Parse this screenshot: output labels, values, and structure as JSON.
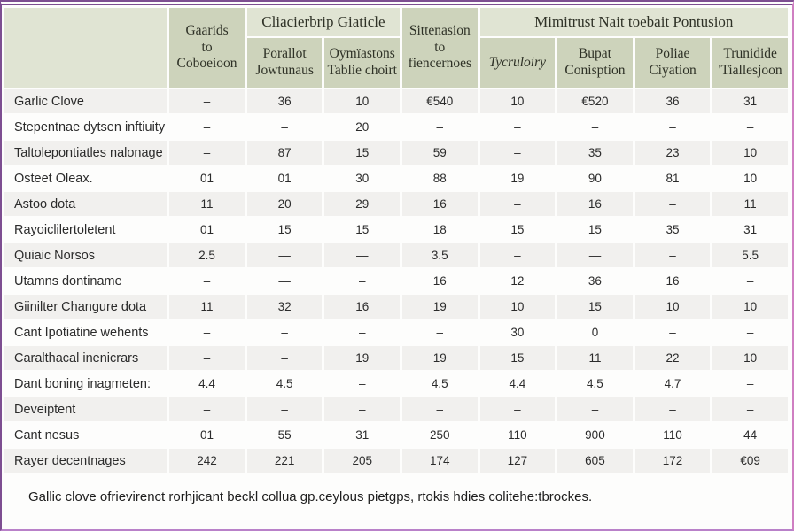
{
  "table": {
    "group_headers": {
      "first": "Cliacierbrip Giaticle",
      "second": "Mimitrust Nait toebait Pontusion"
    },
    "column_headers": {
      "col1": "Gaarids\nto\nCoboeioon",
      "col2": "Porallot\nJowtunaus",
      "col3": "Oymïastons\nTablie choirt",
      "col4": "Sittenasion\nto\nfiencernoes",
      "col5": "Tycruloiry",
      "col6": "Bupat\nConisption",
      "col7": "Poliae\nCiyation",
      "col8": "Trunidide\n'Tiallesjoon"
    },
    "rows": [
      {
        "label": "Garlic Clove",
        "values": [
          "–",
          "36",
          "10",
          "€540",
          "10",
          "€520",
          "36",
          "31"
        ]
      },
      {
        "label": "Stepentnae dytsen inftiuity",
        "values": [
          "–",
          "–",
          "20",
          "–",
          "–",
          "–",
          "–",
          "–"
        ]
      },
      {
        "label": "Taltolepontiatles nalonage",
        "values": [
          "–",
          "87",
          "15",
          "59",
          "–",
          "35",
          "23",
          "10"
        ]
      },
      {
        "label": "Osteet Oleax.",
        "values": [
          "01",
          "01",
          "30",
          "88",
          "19",
          "90",
          "81",
          "10"
        ]
      },
      {
        "label": "Astoo dota",
        "values": [
          "11",
          "20",
          "29",
          "16",
          "–",
          "16",
          "–",
          "11"
        ]
      },
      {
        "label": "Rayoiclilertoletent",
        "values": [
          "01",
          "15",
          "15",
          "18",
          "15",
          "15",
          "35",
          "31"
        ]
      },
      {
        "label": "Quiaic Norsos",
        "values": [
          "2.5",
          "—",
          "—",
          "3.5",
          "–",
          "—",
          "–",
          "5.5"
        ]
      },
      {
        "label": "Utamns dontiname",
        "values": [
          "–",
          "—",
          "–",
          "16",
          "12",
          "36",
          "16",
          "–"
        ]
      },
      {
        "label": "Giinilter Changure dota",
        "values": [
          "11",
          "32",
          "16",
          "19",
          "10",
          "15",
          "10",
          "10"
        ]
      },
      {
        "label": "Cant Ipotiatine wehents",
        "values": [
          "–",
          "–",
          "–",
          "–",
          "30",
          "0",
          "–",
          "–"
        ]
      },
      {
        "label": "Caralthacal inenicrars",
        "values": [
          "–",
          "–",
          "19",
          "19",
          "15",
          "11",
          "22",
          "10"
        ]
      },
      {
        "label": "Dant boning inagmeten:",
        "values": [
          "4.4",
          "4.5",
          "–",
          "4.5",
          "4.4",
          "4.5",
          "4.7",
          "–"
        ]
      },
      {
        "label": "Deveiptent",
        "values": [
          "–",
          "–",
          "–",
          "–",
          "–",
          "–",
          "–",
          "–"
        ]
      },
      {
        "label": "Cant nesus",
        "values": [
          "01",
          "55",
          "31",
          "250",
          "110",
          "900",
          "110",
          "44"
        ]
      },
      {
        "label": "Rayer decentnages",
        "values": [
          "242",
          "221",
          "205",
          "174",
          "127",
          "605",
          "172",
          "€09"
        ]
      }
    ]
  },
  "footer": {
    "note": "Gallic clove ofrievirenct rorhjicant beckl collua gp.ceylous pietgps, rtokis hdies colitehe:tbrockes."
  },
  "colors": {
    "header_light": "#e0e4d3",
    "header_dark": "#cdd3bb",
    "row_stripe": "#f1f0ee",
    "border_purple": "#7d4e91",
    "border_pink": "#cf7fc2"
  }
}
